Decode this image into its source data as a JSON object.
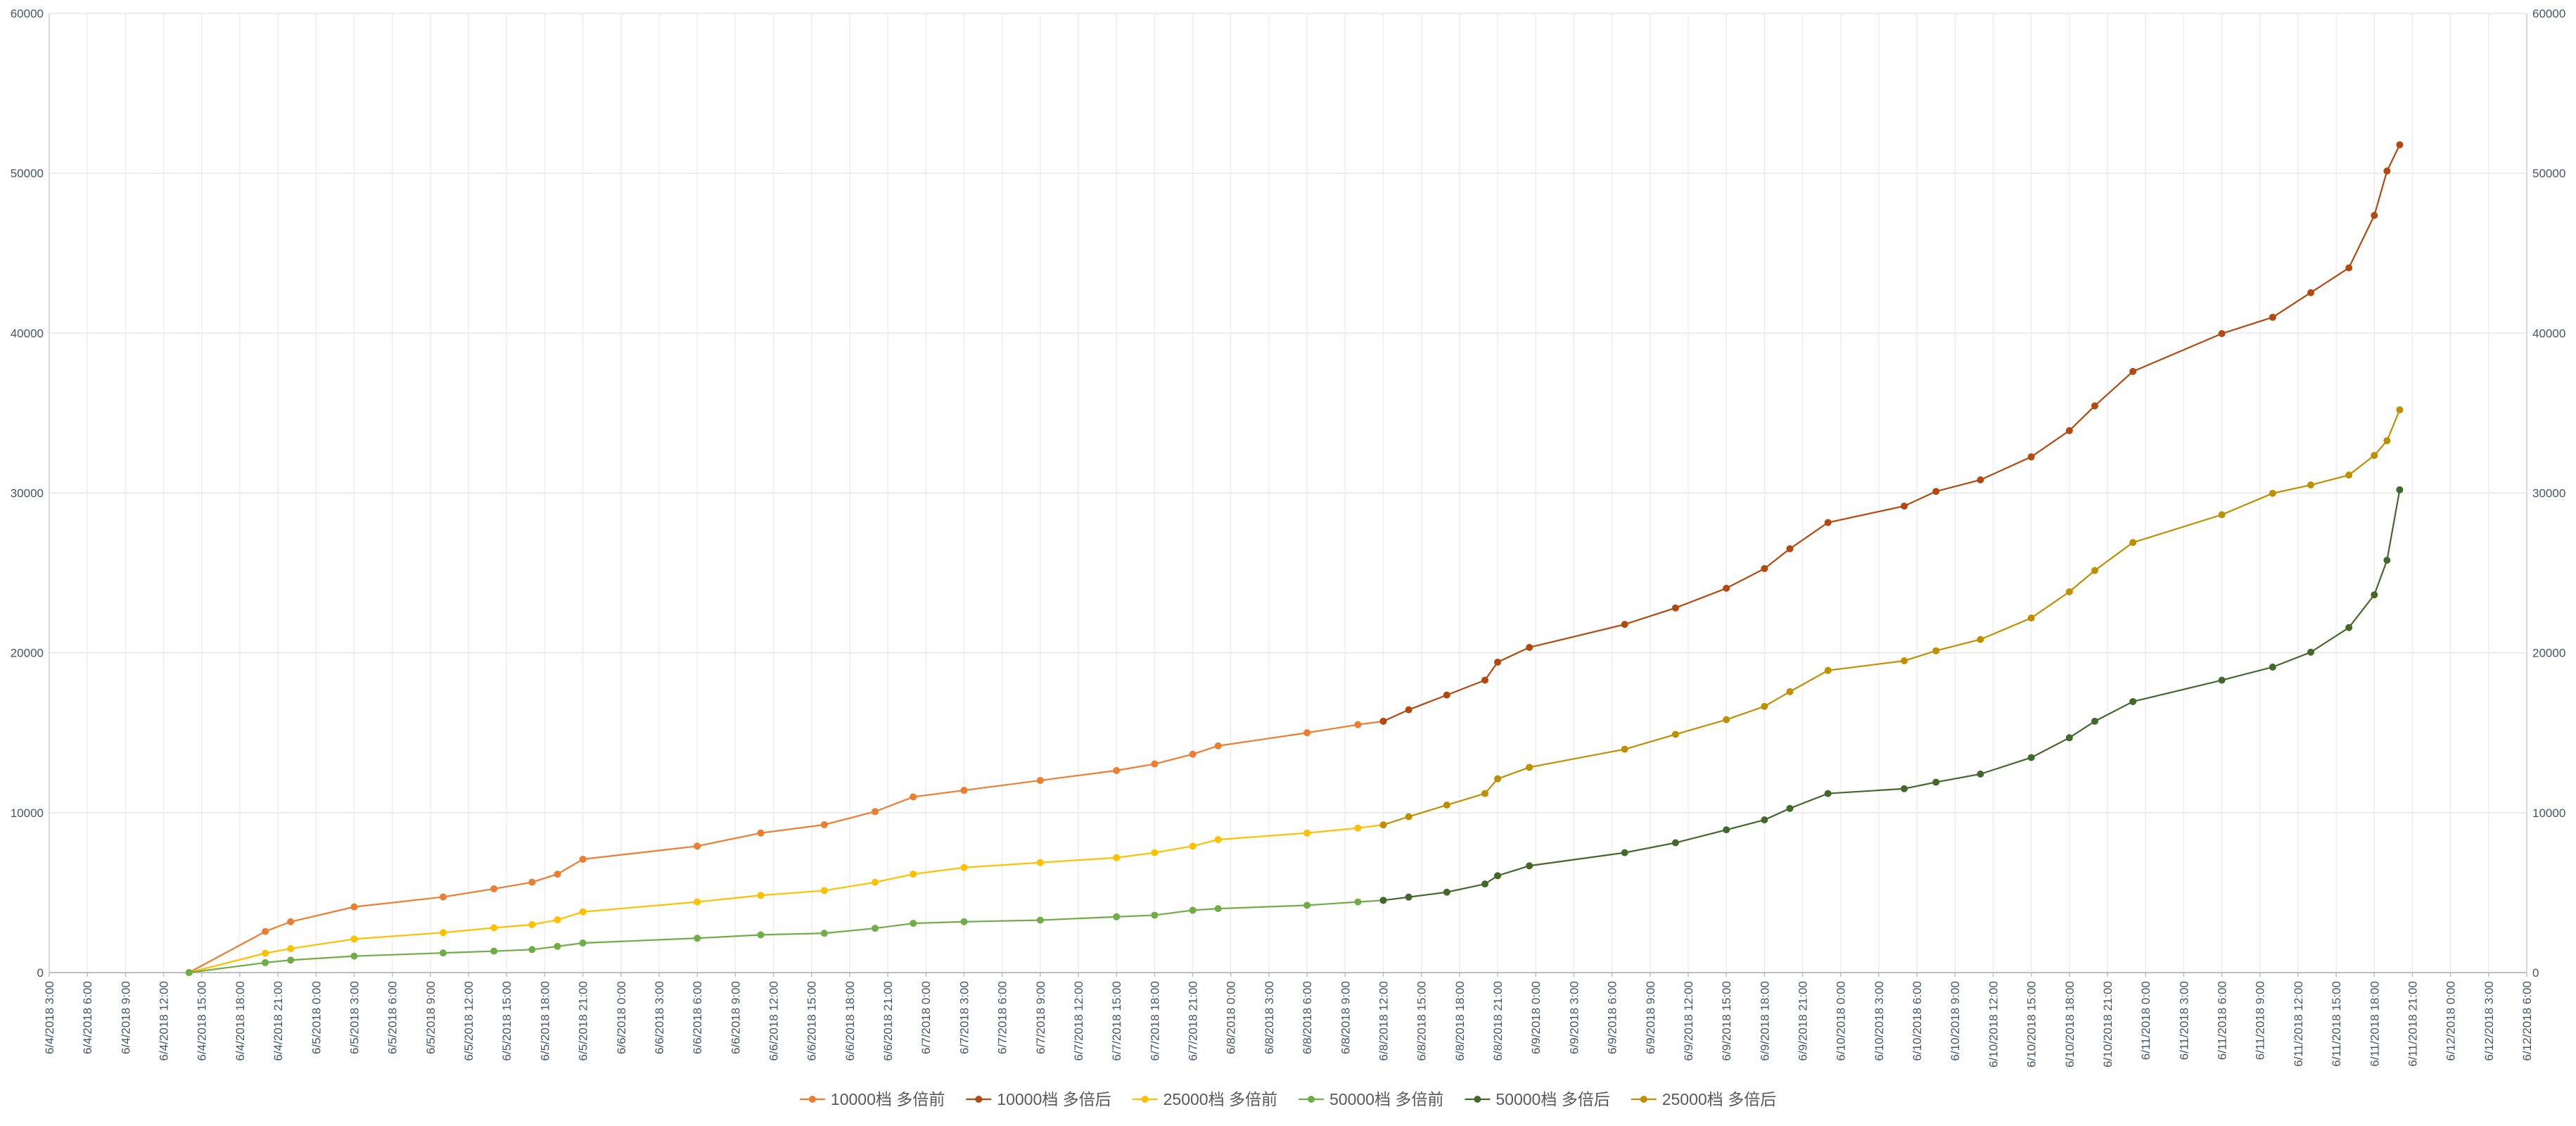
{
  "chart_data": {
    "type": "line",
    "xlim": [
      "6/4/2018 3:00",
      "6/12/2018 6:00"
    ],
    "xticks": [
      "6/4/2018 3:00",
      "6/4/2018 6:00",
      "6/4/2018 9:00",
      "6/4/2018 12:00",
      "6/4/2018 15:00",
      "6/4/2018 18:00",
      "6/4/2018 21:00",
      "6/5/2018 0:00",
      "6/5/2018 3:00",
      "6/5/2018 6:00",
      "6/5/2018 9:00",
      "6/5/2018 12:00",
      "6/5/2018 15:00",
      "6/5/2018 18:00",
      "6/5/2018 21:00",
      "6/6/2018 0:00",
      "6/6/2018 3:00",
      "6/6/2018 6:00",
      "6/6/2018 9:00",
      "6/6/2018 12:00",
      "6/6/2018 15:00",
      "6/6/2018 18:00",
      "6/6/2018 21:00",
      "6/7/2018 0:00",
      "6/7/2018 3:00",
      "6/7/2018 6:00",
      "6/7/2018 9:00",
      "6/7/2018 12:00",
      "6/7/2018 15:00",
      "6/7/2018 18:00",
      "6/7/2018 21:00",
      "6/8/2018 0:00",
      "6/8/2018 3:00",
      "6/8/2018 6:00",
      "6/8/2018 9:00",
      "6/8/2018 12:00",
      "6/8/2018 15:00",
      "6/8/2018 18:00",
      "6/8/2018 21:00",
      "6/9/2018 0:00",
      "6/9/2018 3:00",
      "6/9/2018 6:00",
      "6/9/2018 9:00",
      "6/9/2018 12:00",
      "6/9/2018 15:00",
      "6/9/2018 18:00",
      "6/9/2018 21:00",
      "6/10/2018 0:00",
      "6/10/2018 3:00",
      "6/10/2018 6:00",
      "6/10/2018 9:00",
      "6/10/2018 12:00",
      "6/10/2018 15:00",
      "6/10/2018 18:00",
      "6/10/2018 21:00",
      "6/11/2018 0:00",
      "6/11/2018 3:00",
      "6/11/2018 6:00",
      "6/11/2018 9:00",
      "6/11/2018 12:00",
      "6/11/2018 15:00",
      "6/11/2018 18:00",
      "6/11/2018 21:00",
      "6/12/2018 0:00",
      "6/12/2018 3:00",
      "6/12/2018 6:00"
    ],
    "ylim": [
      0,
      60000
    ],
    "yticks": [
      0,
      10000,
      20000,
      30000,
      40000,
      50000,
      60000
    ],
    "y2lim": [
      0,
      60000
    ],
    "y2ticks": [
      0,
      10000,
      20000,
      30000,
      40000,
      50000,
      60000
    ],
    "grid": true,
    "legend": "bottom",
    "series": [
      {
        "name": "10000档 多倍前",
        "color": "#ED7D31",
        "x": [
          "6/4/2018 14:00",
          "6/4/2018 20:00",
          "6/4/2018 22:00",
          "6/5/2018 3:00",
          "6/5/2018 10:00",
          "6/5/2018 14:00",
          "6/5/2018 17:00",
          "6/5/2018 19:00",
          "6/5/2018 21:00",
          "6/6/2018 6:00",
          "6/6/2018 11:00",
          "6/6/2018 16:00",
          "6/6/2018 20:00",
          "6/6/2018 23:00",
          "6/7/2018 3:00",
          "6/7/2018 9:00",
          "6/7/2018 15:00",
          "6/7/2018 18:00",
          "6/7/2018 21:00",
          "6/7/2018 23:00",
          "6/8/2018 6:00",
          "6/8/2018 10:00",
          "6/8/2018 12:00"
        ],
        "values": [
          0,
          2570,
          3180,
          4110,
          4730,
          5240,
          5650,
          6160,
          7090,
          7910,
          8730,
          9250,
          10070,
          10990,
          11400,
          12020,
          12640,
          13050,
          13660,
          14180,
          15000,
          15510,
          15720
        ]
      },
      {
        "name": "10000档 多倍后",
        "color": "#B4490F",
        "x": [
          "6/8/2018 12:00",
          "6/8/2018 14:00",
          "6/8/2018 17:00",
          "6/8/2018 20:00",
          "6/8/2018 21:00",
          "6/8/2018 23:30",
          "6/9/2018 7:00",
          "6/9/2018 11:00",
          "6/9/2018 15:00",
          "6/9/2018 18:00",
          "6/9/2018 20:00",
          "6/9/2018 23:00",
          "6/10/2018 5:00",
          "6/10/2018 7:30",
          "6/10/2018 11:00",
          "6/10/2018 15:00",
          "6/10/2018 18:00",
          "6/10/2018 20:00",
          "6/10/2018 23:00",
          "6/11/2018 6:00",
          "6/11/2018 10:00",
          "6/11/2018 13:00",
          "6/11/2018 16:00",
          "6/11/2018 18:00",
          "6/11/2018 19:00",
          "6/11/2018 20:00"
        ],
        "values": [
          15720,
          16440,
          17360,
          18290,
          19420,
          20340,
          21780,
          22810,
          24040,
          25270,
          26510,
          28150,
          29180,
          30100,
          30820,
          32260,
          33900,
          35450,
          37600,
          39970,
          40990,
          42530,
          44080,
          47360,
          50140,
          51780
        ]
      },
      {
        "name": "25000档 多倍前",
        "color": "#FFC000",
        "x": [
          "6/4/2018 14:00",
          "6/4/2018 20:00",
          "6/4/2018 22:00",
          "6/5/2018 3:00",
          "6/5/2018 10:00",
          "6/5/2018 14:00",
          "6/5/2018 17:00",
          "6/5/2018 19:00",
          "6/5/2018 21:00",
          "6/6/2018 6:00",
          "6/6/2018 11:00",
          "6/6/2018 16:00",
          "6/6/2018 20:00",
          "6/6/2018 23:00",
          "6/7/2018 3:00",
          "6/7/2018 9:00",
          "6/7/2018 15:00",
          "6/7/2018 18:00",
          "6/7/2018 21:00",
          "6/7/2018 23:00",
          "6/8/2018 6:00",
          "6/8/2018 10:00",
          "6/8/2018 12:00"
        ],
        "values": [
          0,
          1210,
          1500,
          2100,
          2500,
          2800,
          3000,
          3300,
          3800,
          4420,
          4830,
          5130,
          5650,
          6160,
          6570,
          6880,
          7190,
          7500,
          7910,
          8320,
          8730,
          9040,
          9240
        ]
      },
      {
        "name": "50000档 多倍前",
        "color": "#70AD47",
        "x": [
          "6/4/2018 14:00",
          "6/4/2018 20:00",
          "6/4/2018 22:00",
          "6/5/2018 3:00",
          "6/5/2018 10:00",
          "6/5/2018 14:00",
          "6/5/2018 17:00",
          "6/5/2018 19:00",
          "6/5/2018 21:00",
          "6/6/2018 6:00",
          "6/6/2018 11:00",
          "6/6/2018 16:00",
          "6/6/2018 20:00",
          "6/6/2018 23:00",
          "6/7/2018 3:00",
          "6/7/2018 9:00",
          "6/7/2018 15:00",
          "6/7/2018 18:00",
          "6/7/2018 21:00",
          "6/7/2018 23:00",
          "6/8/2018 6:00",
          "6/8/2018 10:00",
          "6/8/2018 12:00"
        ],
        "values": [
          0,
          620,
          780,
          1030,
          1230,
          1340,
          1440,
          1640,
          1850,
          2150,
          2360,
          2460,
          2770,
          3080,
          3180,
          3280,
          3490,
          3590,
          3900,
          4000,
          4210,
          4420,
          4520
        ]
      },
      {
        "name": "50000档 多倍后",
        "color": "#43682B",
        "x": [
          "6/8/2018 12:00",
          "6/8/2018 14:00",
          "6/8/2018 17:00",
          "6/8/2018 20:00",
          "6/8/2018 21:00",
          "6/8/2018 23:30",
          "6/9/2018 7:00",
          "6/9/2018 11:00",
          "6/9/2018 15:00",
          "6/9/2018 18:00",
          "6/9/2018 20:00",
          "6/9/2018 23:00",
          "6/10/2018 5:00",
          "6/10/2018 7:30",
          "6/10/2018 11:00",
          "6/10/2018 15:00",
          "6/10/2018 18:00",
          "6/10/2018 20:00",
          "6/10/2018 23:00",
          "6/11/2018 6:00",
          "6/11/2018 10:00",
          "6/11/2018 13:00",
          "6/11/2018 16:00",
          "6/11/2018 18:00",
          "6/11/2018 19:00",
          "6/11/2018 20:00"
        ],
        "values": [
          4520,
          4720,
          5030,
          5540,
          6060,
          6680,
          7500,
          8120,
          8930,
          9550,
          10270,
          11200,
          11500,
          11910,
          12420,
          13450,
          14690,
          15720,
          16950,
          18290,
          19110,
          20040,
          21580,
          23630,
          25790,
          30200
        ]
      },
      {
        "name": "25000档 多倍后",
        "color": "#BF8F00",
        "x": [
          "6/8/2018 12:00",
          "6/8/2018 14:00",
          "6/8/2018 17:00",
          "6/8/2018 20:00",
          "6/8/2018 21:00",
          "6/8/2018 23:30",
          "6/9/2018 7:00",
          "6/9/2018 11:00",
          "6/9/2018 15:00",
          "6/9/2018 18:00",
          "6/9/2018 20:00",
          "6/9/2018 23:00",
          "6/10/2018 5:00",
          "6/10/2018 7:30",
          "6/10/2018 11:00",
          "6/10/2018 15:00",
          "6/10/2018 18:00",
          "6/10/2018 20:00",
          "6/10/2018 23:00",
          "6/11/2018 6:00",
          "6/11/2018 10:00",
          "6/11/2018 13:00",
          "6/11/2018 16:00",
          "6/11/2018 18:00",
          "6/11/2018 19:00",
          "6/11/2018 20:00"
        ],
        "values": [
          9240,
          9750,
          10480,
          11200,
          12120,
          12840,
          13970,
          14900,
          15820,
          16650,
          17570,
          18900,
          19500,
          20130,
          20840,
          22180,
          23820,
          25150,
          26900,
          28640,
          29980,
          30500,
          31120,
          32350,
          33270,
          35200
        ]
      }
    ]
  }
}
